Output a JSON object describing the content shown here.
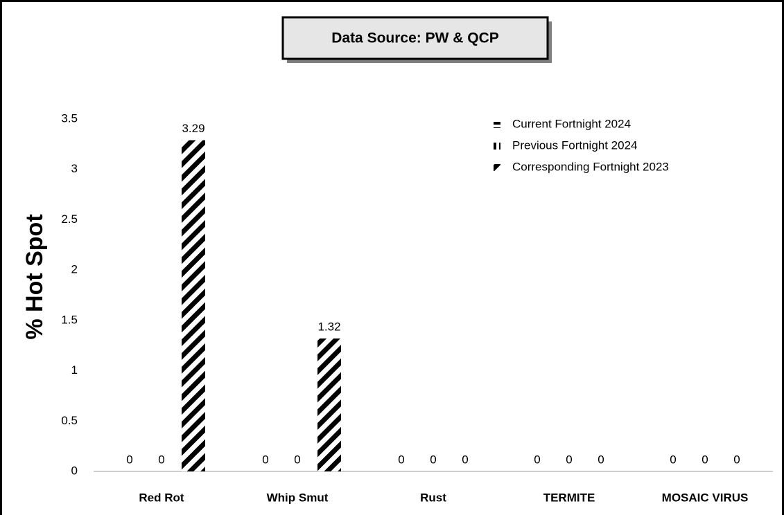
{
  "chart_data": {
    "type": "bar",
    "title": "Data Source: PW & QCP",
    "y_label": "% Hot Spot",
    "categories": [
      "Red Rot",
      "Whip Smut",
      "Rust",
      "TERMITE",
      "MOSAIC VIRUS"
    ],
    "series": [
      {
        "name": "Current Fortnight 2024",
        "color": "#000000",
        "pattern": "horizontal",
        "values": [
          0,
          0,
          0,
          0,
          0
        ]
      },
      {
        "name": "Previous Fortnight 2024",
        "color": "#000000",
        "pattern": "vertical",
        "values": [
          0,
          0,
          0,
          0,
          0
        ]
      },
      {
        "name": "Corresponding Fortnight 2023",
        "color": "#000000",
        "pattern": "diagonal",
        "values": [
          3.29,
          1.32,
          0,
          0,
          0
        ]
      }
    ],
    "ylim": [
      0,
      3.5
    ],
    "yticks": [
      0,
      0.5,
      1,
      1.5,
      2,
      2.5,
      3,
      3.5
    ],
    "grid": false,
    "legend": "top-right"
  }
}
